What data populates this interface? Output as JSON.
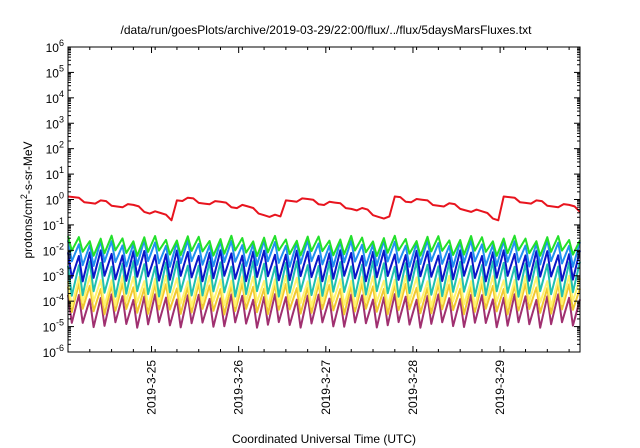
{
  "chart_data": {
    "type": "line",
    "title": "/data/run/goesPlots/archive/2019-03-29/22:00/flux/../flux/5daysMarsFluxes.txt",
    "xlabel": "Coordinated Universal Time (UTC)",
    "ylabel": "protons/cm²-s-sr-MeV",
    "ylabel_parts": {
      "pre": "protons/cm",
      "sup": "2",
      "post": "-s-sr-MeV"
    },
    "y_scale": "log",
    "ylim": [
      1e-06,
      1000000.0
    ],
    "y_ticks": [
      {
        "base": "10",
        "exp": "6",
        "value": 1000000.0
      },
      {
        "base": "10",
        "exp": "5",
        "value": 100000.0
      },
      {
        "base": "10",
        "exp": "4",
        "value": 10000.0
      },
      {
        "base": "10",
        "exp": "3",
        "value": 1000.0
      },
      {
        "base": "10",
        "exp": "2",
        "value": 100.0
      },
      {
        "base": "10",
        "exp": "1",
        "value": 10.0
      },
      {
        "base": "10",
        "exp": "0",
        "value": 1.0
      },
      {
        "base": "10",
        "exp": "-1",
        "value": 0.1
      },
      {
        "base": "10",
        "exp": "-2",
        "value": 0.01
      },
      {
        "base": "10",
        "exp": "-3",
        "value": 0.001
      },
      {
        "base": "10",
        "exp": "-4",
        "value": 0.0001
      },
      {
        "base": "10",
        "exp": "-5",
        "value": 1e-05
      },
      {
        "base": "10",
        "exp": "-6",
        "value": 1e-06
      }
    ],
    "xlim": [
      "2019-03-24T01:00",
      "2019-03-29T22:00"
    ],
    "x_ticks": [
      "2019-3-25",
      "2019-3-26",
      "2019-3-27",
      "2019-3-28",
      "2019-3-29"
    ],
    "grid": false,
    "legend": "none",
    "series": [
      {
        "color": "#e8141e",
        "kind": "smooth",
        "baseline": 0.3,
        "amp": 0.75,
        "period_h": 30,
        "teeth_h": 4,
        "teeth_amp": 0.25
      },
      {
        "color": "#22e02a",
        "kind": "sawtooth",
        "low": 0.008,
        "high": 0.03,
        "period_h": 3
      },
      {
        "color": "#2090f0",
        "kind": "sawtooth",
        "low": 0.003,
        "high": 0.02,
        "period_h": 3
      },
      {
        "color": "#0a16c8",
        "kind": "sawtooth",
        "low": 0.0008,
        "high": 0.008,
        "period_h": 3
      },
      {
        "color": "#20c0b0",
        "kind": "sawtooth",
        "low": 0.0002,
        "high": 0.003,
        "period_h": 3
      },
      {
        "color": "#fff470",
        "kind": "sawtooth",
        "low": 8e-05,
        "high": 0.0008,
        "period_h": 3
      },
      {
        "color": "#f0c830",
        "kind": "sawtooth",
        "low": 4e-05,
        "high": 0.0004,
        "period_h": 3
      },
      {
        "color": "#a03070",
        "kind": "sawtooth",
        "low": 1.2e-05,
        "high": 0.00015,
        "period_h": 3
      }
    ]
  }
}
